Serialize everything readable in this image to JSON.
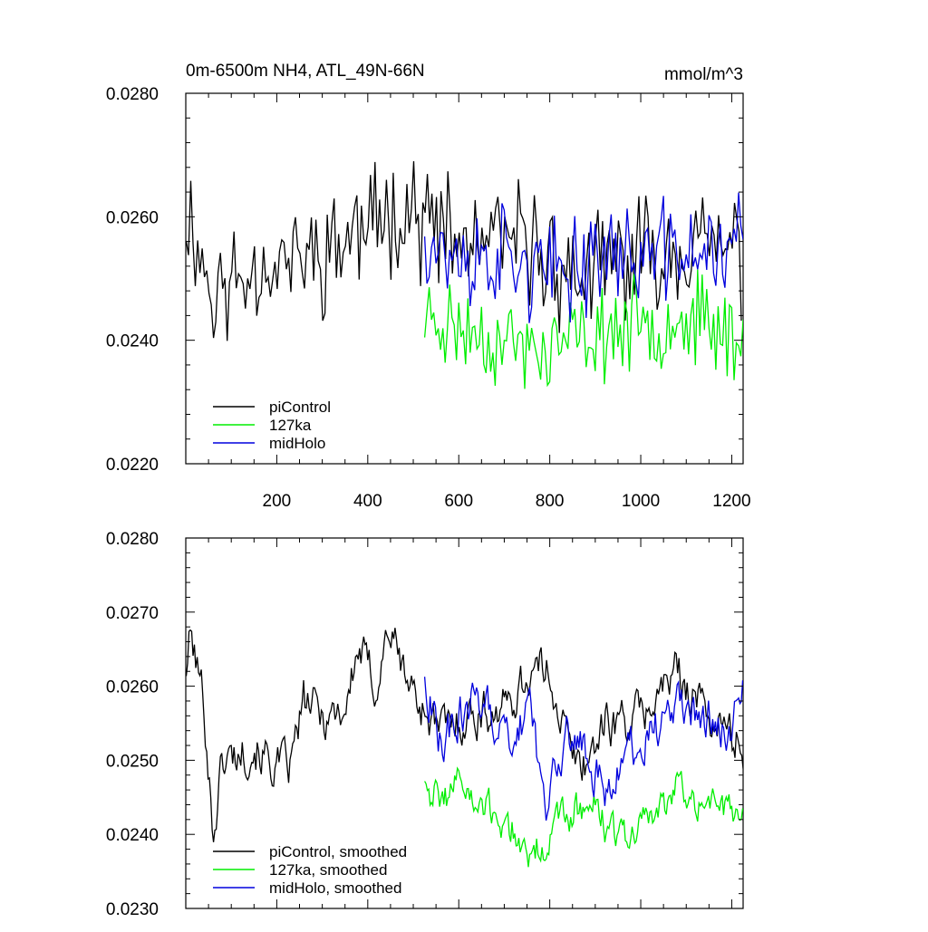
{
  "figure": {
    "title": "0m-6500m NH4, ATL_49N-66N",
    "units": "mmol/m^3"
  },
  "colors": {
    "piControl": "#000000",
    "127ka": "#00ee00",
    "midHolo": "#0000dd"
  },
  "chart_data": [
    {
      "type": "line",
      "title": "0m-6500m NH4, ATL_49N-66N",
      "units_label": "mmol/m^3",
      "xlim": [
        0,
        1225
      ],
      "ylim": [
        0.022,
        0.028
      ],
      "xticks": [
        200,
        400,
        600,
        800,
        1000,
        1200
      ],
      "xtick_labels": [
        "200",
        "400",
        "600",
        "800",
        "1000",
        "1200"
      ],
      "yticks": [
        0.022,
        0.024,
        0.026,
        0.028
      ],
      "ytick_labels": [
        "0.0220",
        "0.0240",
        "0.0260",
        "0.0280"
      ],
      "legend_position": "bottom-left",
      "series": [
        {
          "name": "piControl",
          "color": "#000000",
          "x_start": 1,
          "x_end": 1225,
          "step": 5,
          "mean": 0.02545,
          "amplitude": 0.0009,
          "seed": 11,
          "drift": [
            [
              0,
              0.0262
            ],
            [
              60,
              0.0247
            ],
            [
              150,
              0.0252
            ],
            [
              300,
              0.0254
            ],
            [
              480,
              0.0262
            ],
            [
              600,
              0.0255
            ],
            [
              750,
              0.0256
            ],
            [
              850,
              0.025
            ],
            [
              1100,
              0.0256
            ],
            [
              1225,
              0.0254
            ]
          ]
        },
        {
          "name": "127ka",
          "color": "#00ee00",
          "x_start": 525,
          "x_end": 1225,
          "step": 5,
          "mean": 0.0241,
          "amplitude": 0.0007,
          "seed": 23,
          "drift": [
            [
              525,
              0.0244
            ],
            [
              600,
              0.0242
            ],
            [
              780,
              0.0238
            ],
            [
              900,
              0.0241
            ],
            [
              1100,
              0.0244
            ],
            [
              1225,
              0.024
            ]
          ]
        },
        {
          "name": "midHolo",
          "color": "#0000dd",
          "x_start": 525,
          "x_end": 1225,
          "step": 5,
          "mean": 0.0253,
          "amplitude": 0.0008,
          "seed": 37,
          "drift": [
            [
              525,
              0.0258
            ],
            [
              600,
              0.0252
            ],
            [
              700,
              0.0254
            ],
            [
              800,
              0.025
            ],
            [
              900,
              0.0254
            ],
            [
              1100,
              0.0254
            ],
            [
              1225,
              0.0256
            ]
          ]
        }
      ]
    },
    {
      "type": "line",
      "xlim": [
        0,
        1225
      ],
      "ylim": [
        0.023,
        0.028
      ],
      "yticks": [
        0.023,
        0.024,
        0.025,
        0.026,
        0.027,
        0.028
      ],
      "ytick_labels": [
        "0.0230",
        "0.0240",
        "0.0250",
        "0.0260",
        "0.0270",
        "0.0280"
      ],
      "legend_position": "bottom-left",
      "series": [
        {
          "name": "piControl, smoothed",
          "color": "#000000",
          "x_start": 1,
          "x_end": 1225,
          "step": 3,
          "amplitude": 0.00028,
          "seed": 101,
          "drift": [
            [
              0,
              0.0262
            ],
            [
              10,
              0.0267
            ],
            [
              40,
              0.0258
            ],
            [
              60,
              0.024
            ],
            [
              80,
              0.025
            ],
            [
              150,
              0.0252
            ],
            [
              200,
              0.0249
            ],
            [
              230,
              0.0249
            ],
            [
              260,
              0.0258
            ],
            [
              300,
              0.0256
            ],
            [
              350,
              0.0257
            ],
            [
              380,
              0.0265
            ],
            [
              420,
              0.026
            ],
            [
              445,
              0.0268
            ],
            [
              480,
              0.0262
            ],
            [
              510,
              0.0258
            ],
            [
              560,
              0.0254
            ],
            [
              620,
              0.0256
            ],
            [
              700,
              0.0257
            ],
            [
              760,
              0.0262
            ],
            [
              800,
              0.0262
            ],
            [
              850,
              0.025
            ],
            [
              880,
              0.025
            ],
            [
              920,
              0.0255
            ],
            [
              1000,
              0.0256
            ],
            [
              1080,
              0.0262
            ],
            [
              1150,
              0.0256
            ],
            [
              1225,
              0.0252
            ]
          ]
        },
        {
          "name": "127ka, smoothed",
          "color": "#00ee00",
          "x_start": 525,
          "x_end": 1225,
          "step": 3,
          "amplitude": 0.00025,
          "seed": 211,
          "drift": [
            [
              525,
              0.0248
            ],
            [
              560,
              0.0244
            ],
            [
              600,
              0.0248
            ],
            [
              640,
              0.0243
            ],
            [
              700,
              0.0242
            ],
            [
              760,
              0.0237
            ],
            [
              800,
              0.024
            ],
            [
              870,
              0.0244
            ],
            [
              900,
              0.0243
            ],
            [
              960,
              0.0239
            ],
            [
              1000,
              0.0241
            ],
            [
              1080,
              0.0246
            ],
            [
              1150,
              0.0245
            ],
            [
              1225,
              0.0241
            ]
          ]
        },
        {
          "name": "midHolo, smoothed",
          "color": "#0000dd",
          "x_start": 525,
          "x_end": 1225,
          "step": 3,
          "amplitude": 0.00028,
          "seed": 307,
          "drift": [
            [
              525,
              0.0262
            ],
            [
              560,
              0.0252
            ],
            [
              600,
              0.0256
            ],
            [
              650,
              0.0258
            ],
            [
              700,
              0.0253
            ],
            [
              760,
              0.0257
            ],
            [
              790,
              0.0243
            ],
            [
              840,
              0.0254
            ],
            [
              880,
              0.0251
            ],
            [
              920,
              0.0246
            ],
            [
              960,
              0.0251
            ],
            [
              1000,
              0.0252
            ],
            [
              1080,
              0.0257
            ],
            [
              1150,
              0.0256
            ],
            [
              1200,
              0.0254
            ],
            [
              1225,
              0.026
            ]
          ]
        }
      ]
    }
  ]
}
